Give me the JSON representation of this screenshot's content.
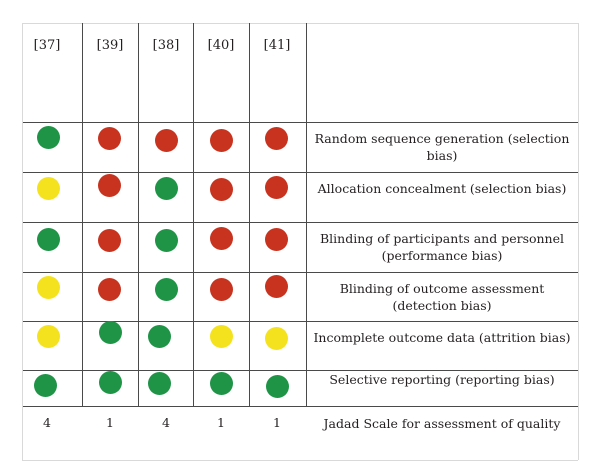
{
  "studies": [
    "[37]",
    "[39]",
    "[38]",
    "[40]",
    "[41]"
  ],
  "colors": {
    "low": "#1f9447",
    "high": "#c8331f",
    "unclear": "#f4e21e",
    "rule": "#4a4a4a"
  },
  "rows": [
    {
      "label": "Random sequence generation (selection bias)",
      "ratings": [
        "low",
        "high",
        "high",
        "high",
        "high"
      ]
    },
    {
      "label": "Allocation concealment (selection bias)",
      "ratings": [
        "unclear",
        "high",
        "low",
        "high",
        "high"
      ]
    },
    {
      "label": "Blinding of participants and personnel (performance bias)",
      "ratings": [
        "low",
        "high",
        "low",
        "high",
        "high"
      ]
    },
    {
      "label": "Blinding of outcome assessment (detection bias)",
      "ratings": [
        "unclear",
        "high",
        "low",
        "high",
        "high"
      ]
    },
    {
      "label": "Incomplete outcome data (attrition bias)",
      "ratings": [
        "unclear",
        "low",
        "low",
        "unclear",
        "unclear"
      ]
    },
    {
      "label": "Selective reporting (reporting bias)",
      "ratings": [
        "low",
        "low",
        "low",
        "low",
        "low"
      ]
    }
  ],
  "jadad": {
    "label": "Jadad Scale for assessment of quality",
    "scores": [
      "4",
      "1",
      "4",
      "1",
      "1"
    ]
  }
}
